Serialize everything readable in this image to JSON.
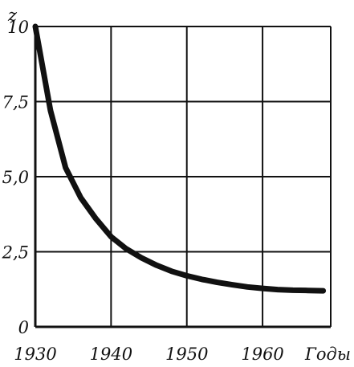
{
  "chart_data": {
    "type": "line",
    "ylabel": "z",
    "xlabel": "Годы",
    "xlim": [
      1930,
      1969
    ],
    "ylim": [
      0,
      10
    ],
    "grid": true,
    "xticks": [
      1930,
      1940,
      1950,
      1960
    ],
    "xtick_labels": [
      "1930",
      "1940",
      "1950",
      "1960"
    ],
    "yticks": [
      0,
      2.5,
      5.0,
      7.5,
      10
    ],
    "ytick_labels": [
      "0",
      "2,5",
      "5,0",
      "7,5",
      "10"
    ],
    "series": [
      {
        "x": [
          1930,
          1932,
          1934,
          1936,
          1938,
          1940,
          1942,
          1944,
          1946,
          1948,
          1950,
          1952,
          1954,
          1956,
          1958,
          1960,
          1962,
          1964,
          1966,
          1968
        ],
        "y": [
          10.0,
          7.2,
          5.3,
          4.3,
          3.6,
          3.0,
          2.6,
          2.3,
          2.05,
          1.85,
          1.7,
          1.58,
          1.48,
          1.4,
          1.33,
          1.28,
          1.24,
          1.22,
          1.21,
          1.2
        ]
      }
    ]
  }
}
